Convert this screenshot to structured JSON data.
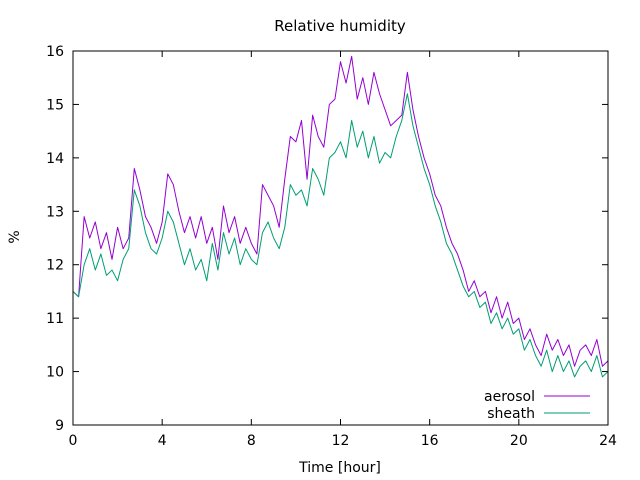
{
  "chart_data": {
    "type": "line",
    "title": "Relative humidity",
    "xlabel": "Time [hour]",
    "ylabel": "%",
    "xlim": [
      0,
      24
    ],
    "ylim": [
      9,
      16
    ],
    "xticks": [
      0,
      4,
      8,
      12,
      16,
      20,
      24
    ],
    "yticks": [
      9,
      10,
      11,
      12,
      13,
      14,
      15,
      16
    ],
    "xtick_labels": [
      "0",
      "4",
      "8",
      "12",
      "16",
      "20",
      "24"
    ],
    "ytick_labels": [
      "9",
      "10",
      "11",
      "12",
      "13",
      "14",
      "15",
      "16"
    ],
    "grid": false,
    "legend_position": "bottom-right",
    "x": [
      0.0,
      0.25,
      0.5,
      0.75,
      1.0,
      1.25,
      1.5,
      1.75,
      2.0,
      2.25,
      2.5,
      2.75,
      3.0,
      3.25,
      3.5,
      3.75,
      4.0,
      4.25,
      4.5,
      4.75,
      5.0,
      5.25,
      5.5,
      5.75,
      6.0,
      6.25,
      6.5,
      6.75,
      7.0,
      7.25,
      7.5,
      7.75,
      8.0,
      8.25,
      8.5,
      8.75,
      9.0,
      9.25,
      9.5,
      9.75,
      10.0,
      10.25,
      10.5,
      10.75,
      11.0,
      11.25,
      11.5,
      11.75,
      12.0,
      12.25,
      12.5,
      12.75,
      13.0,
      13.25,
      13.5,
      13.75,
      14.0,
      14.25,
      14.5,
      14.75,
      15.0,
      15.25,
      15.5,
      15.75,
      16.0,
      16.25,
      16.5,
      16.75,
      17.0,
      17.25,
      17.5,
      17.75,
      18.0,
      18.25,
      18.5,
      18.75,
      19.0,
      19.25,
      19.5,
      19.75,
      20.0,
      20.25,
      20.5,
      20.75,
      21.0,
      21.25,
      21.5,
      21.75,
      22.0,
      22.25,
      22.5,
      22.75,
      23.0,
      23.25,
      23.5,
      23.75,
      24.0
    ],
    "series": [
      {
        "name": "aerosol",
        "color": "#9400d3",
        "values": [
          11.5,
          11.4,
          12.9,
          12.5,
          12.8,
          12.3,
          12.6,
          12.1,
          12.7,
          12.3,
          12.5,
          13.8,
          13.4,
          12.9,
          12.7,
          12.4,
          12.8,
          13.7,
          13.5,
          13.0,
          12.6,
          12.9,
          12.5,
          12.9,
          12.4,
          12.7,
          12.1,
          13.1,
          12.6,
          12.9,
          12.4,
          12.7,
          12.4,
          12.2,
          13.5,
          13.3,
          13.1,
          12.7,
          13.6,
          14.4,
          14.3,
          14.7,
          13.6,
          14.8,
          14.4,
          14.2,
          15.0,
          15.1,
          15.8,
          15.4,
          15.9,
          15.1,
          15.5,
          15.0,
          15.6,
          15.2,
          14.9,
          14.6,
          14.7,
          14.8,
          15.6,
          14.9,
          14.4,
          14.0,
          13.7,
          13.3,
          13.1,
          12.7,
          12.4,
          12.2,
          11.9,
          11.5,
          11.7,
          11.4,
          11.5,
          11.1,
          11.4,
          11.0,
          11.3,
          10.9,
          11.0,
          10.6,
          10.8,
          10.5,
          10.3,
          10.7,
          10.4,
          10.6,
          10.3,
          10.5,
          10.1,
          10.4,
          10.5,
          10.3,
          10.6,
          10.1,
          10.2
        ]
      },
      {
        "name": "sheath",
        "color": "#009e73",
        "values": [
          11.5,
          11.4,
          12.0,
          12.3,
          11.9,
          12.2,
          11.8,
          11.9,
          11.7,
          12.1,
          12.3,
          13.4,
          13.1,
          12.6,
          12.3,
          12.2,
          12.5,
          13.0,
          12.8,
          12.4,
          12.0,
          12.3,
          11.9,
          12.1,
          11.7,
          12.4,
          11.9,
          12.6,
          12.2,
          12.5,
          12.0,
          12.3,
          12.1,
          12.0,
          12.6,
          12.8,
          12.5,
          12.3,
          12.7,
          13.5,
          13.3,
          13.4,
          13.1,
          13.8,
          13.6,
          13.3,
          14.0,
          14.1,
          14.3,
          14.0,
          14.7,
          14.2,
          14.5,
          14.0,
          14.4,
          13.9,
          14.1,
          14.0,
          14.4,
          14.7,
          15.2,
          14.6,
          14.2,
          13.8,
          13.5,
          13.1,
          12.8,
          12.4,
          12.2,
          11.9,
          11.6,
          11.4,
          11.5,
          11.2,
          11.3,
          10.9,
          11.1,
          10.8,
          11.0,
          10.7,
          10.8,
          10.4,
          10.6,
          10.3,
          10.1,
          10.4,
          10.0,
          10.3,
          10.0,
          10.2,
          9.9,
          10.1,
          10.2,
          10.0,
          10.3,
          9.9,
          10.0
        ]
      }
    ]
  }
}
